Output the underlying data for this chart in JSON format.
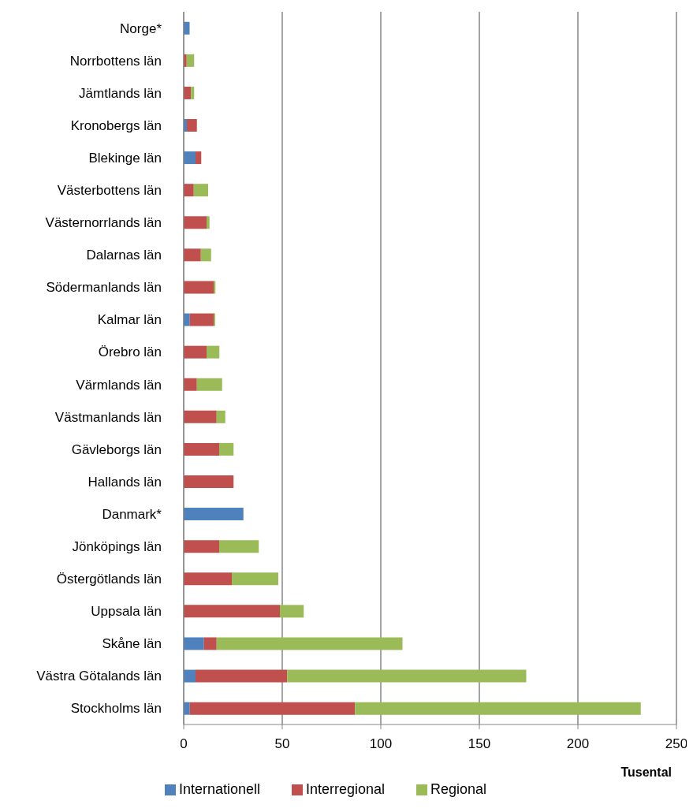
{
  "chart_data": {
    "type": "bar",
    "orientation": "horizontal",
    "stacked": true,
    "categories": [
      "Norge*",
      "Norrbottens län",
      "Jämtlands län",
      "Kronobergs län",
      "Blekinge län",
      "Västerbottens län",
      "Västernorrlands län",
      "Dalarnas län",
      "Södermanlands län",
      "Kalmar län",
      "Örebro län",
      "Värmlands län",
      "Västmanlands län",
      "Gävleborgs län",
      "Hallands län",
      "Danmark*",
      "Jönköpings län",
      "Östergötlands län",
      "Uppsala län",
      "Skåne län",
      "Västra Götalands län",
      "Stockholms län"
    ],
    "series": [
      {
        "name": "Internationell",
        "color": "#4f81bd",
        "values": [
          3,
          0,
          0,
          1.6,
          6,
          0,
          0,
          0,
          0,
          3.1,
          0,
          0,
          0,
          0,
          0,
          30.3,
          0,
          0,
          0,
          10.3,
          6,
          3.1
        ]
      },
      {
        "name": "Interregional",
        "color": "#c0504d",
        "values": [
          0,
          1.5,
          3.7,
          5.1,
          2.9,
          5.1,
          11.6,
          8.7,
          15.2,
          12.1,
          11.6,
          6.7,
          16.7,
          18,
          25.3,
          0,
          18,
          24.4,
          48.8,
          6.4,
          46.5,
          83.8
        ]
      },
      {
        "name": "Regional",
        "color": "#9bbb59",
        "values": [
          0,
          3.8,
          1.6,
          0,
          0,
          7.3,
          1.5,
          5.2,
          0.9,
          0.8,
          6.5,
          12.8,
          4.4,
          7.3,
          0,
          0,
          20.1,
          23.6,
          12.1,
          94.3,
          121.3,
          145
        ]
      }
    ],
    "xlabel": "Tusental",
    "xlim": [
      0,
      250
    ],
    "xticks": [
      0,
      50,
      100,
      150,
      200,
      250
    ],
    "grid": "x",
    "legend": "bottom"
  }
}
